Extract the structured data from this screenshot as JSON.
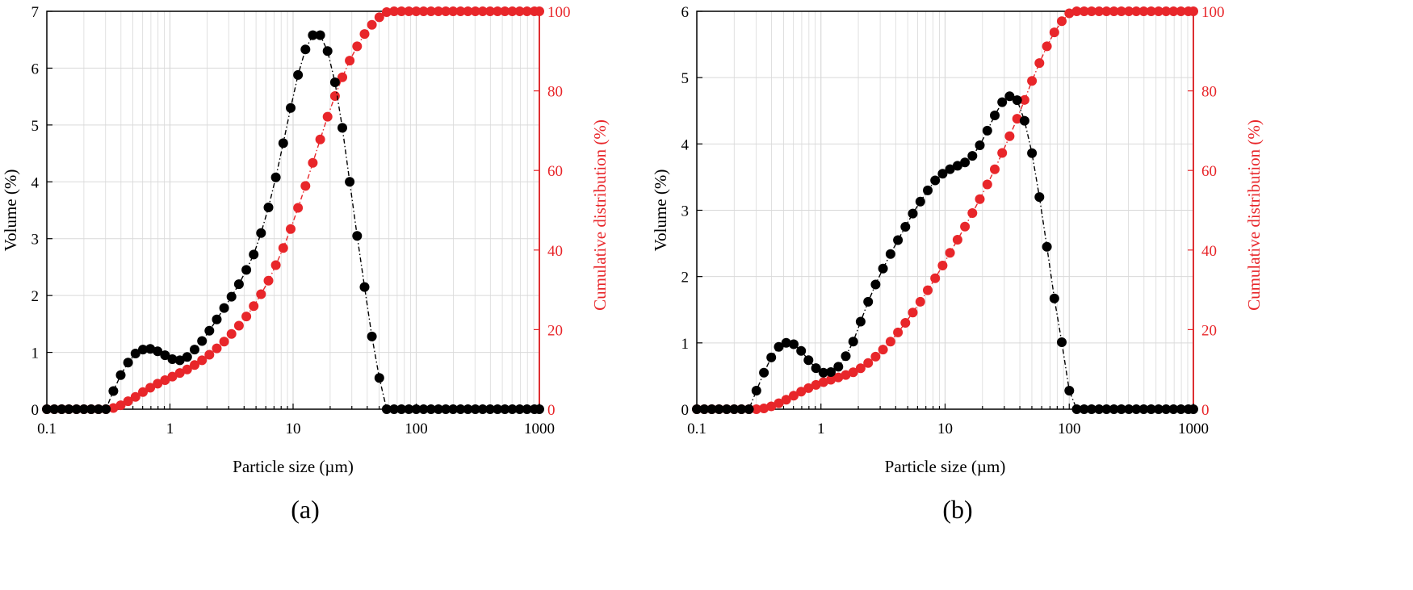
{
  "colors": {
    "volume": "#000000",
    "cumulative": "#e8262a",
    "grid": "#d9d9d9"
  },
  "chart_data": [
    {
      "type": "scatter",
      "panel_label": "(a)",
      "xlabel": "Particle size (µm)",
      "ylabel": "Volume (%)",
      "y2label": "Cumulative distribution (%)",
      "xscale": "log",
      "xlim": [
        0.1,
        1000
      ],
      "ylim": [
        0,
        7
      ],
      "y2lim": [
        0,
        100
      ],
      "xticks": [
        0.1,
        1,
        10,
        100,
        1000
      ],
      "xtick_labels": [
        "0.1",
        "1",
        "10",
        "100",
        "1000"
      ],
      "yticks": [
        0,
        1,
        2,
        3,
        4,
        5,
        6,
        7
      ],
      "ytick_labels": [
        "0",
        "1",
        "2",
        "3",
        "4",
        "5",
        "6",
        "7"
      ],
      "y2ticks": [
        0,
        20,
        40,
        60,
        80,
        100
      ],
      "y2tick_labels": [
        "0",
        "20",
        "40",
        "60",
        "80",
        "100"
      ],
      "grid": true,
      "series": [
        {
          "name": "Volume (%)",
          "axis": "left",
          "color": "#000000",
          "x": [
            0.1,
            0.115,
            0.132,
            0.151,
            0.174,
            0.2,
            0.229,
            0.263,
            0.302,
            0.347,
            0.398,
            0.457,
            0.525,
            0.603,
            0.692,
            0.794,
            0.912,
            1.047,
            1.202,
            1.38,
            1.585,
            1.82,
            2.089,
            2.399,
            2.754,
            3.162,
            3.631,
            4.169,
            4.786,
            5.495,
            6.31,
            7.244,
            8.318,
            9.55,
            10.96,
            12.59,
            14.45,
            16.6,
            19.05,
            21.88,
            25.12,
            28.84,
            33.11,
            38.02,
            43.65,
            50.12,
            57.54,
            66.07,
            75.86,
            87.1,
            100,
            114.8,
            131.8,
            151.4,
            173.8,
            199.5,
            229.1,
            263,
            302,
            346.7,
            398.1,
            457.1,
            524.8,
            602.6,
            691.8,
            794.3,
            912,
            1000
          ],
          "y": [
            0,
            0,
            0,
            0,
            0,
            0,
            0,
            0,
            0,
            0.32,
            0.6,
            0.82,
            0.98,
            1.05,
            1.06,
            1.02,
            0.95,
            0.88,
            0.86,
            0.92,
            1.05,
            1.2,
            1.38,
            1.58,
            1.78,
            1.98,
            2.2,
            2.45,
            2.72,
            3.1,
            3.55,
            4.08,
            4.68,
            5.3,
            5.88,
            6.33,
            6.58,
            6.58,
            6.3,
            5.75,
            4.95,
            4.0,
            3.05,
            2.15,
            1.28,
            0.55,
            0,
            0,
            0,
            0,
            0,
            0,
            0,
            0,
            0,
            0,
            0,
            0,
            0,
            0,
            0,
            0,
            0,
            0,
            0,
            0,
            0,
            0
          ]
        },
        {
          "name": "Cumulative distribution (%)",
          "axis": "right",
          "color": "#e8262a",
          "x": [
            0.1,
            0.115,
            0.132,
            0.151,
            0.174,
            0.2,
            0.229,
            0.263,
            0.302,
            0.347,
            0.398,
            0.457,
            0.525,
            0.603,
            0.692,
            0.794,
            0.912,
            1.047,
            1.202,
            1.38,
            1.585,
            1.82,
            2.089,
            2.399,
            2.754,
            3.162,
            3.631,
            4.169,
            4.786,
            5.495,
            6.31,
            7.244,
            8.318,
            9.55,
            10.96,
            12.59,
            14.45,
            16.6,
            19.05,
            21.88,
            25.12,
            28.84,
            33.11,
            38.02,
            43.65,
            50.12,
            57.54,
            66.07,
            75.86,
            87.1,
            100,
            114.8,
            131.8,
            151.4,
            173.8,
            199.5,
            229.1,
            263,
            302,
            346.7,
            398.1,
            457.1,
            524.8,
            602.6,
            691.8,
            794.3,
            912,
            1000
          ],
          "y": [
            0,
            0,
            0,
            0,
            0,
            0,
            0,
            0,
            0,
            0.3,
            1.0,
            2.0,
            3.1,
            4.3,
            5.4,
            6.4,
            7.3,
            8.2,
            9.1,
            10.0,
            11.1,
            12.3,
            13.7,
            15.3,
            17.0,
            18.9,
            21.0,
            23.3,
            25.9,
            28.9,
            32.3,
            36.2,
            40.5,
            45.3,
            50.6,
            56.1,
            61.9,
            67.8,
            73.5,
            78.7,
            83.4,
            87.6,
            91.2,
            94.3,
            96.6,
            98.5,
            99.8,
            100,
            100,
            100,
            100,
            100,
            100,
            100,
            100,
            100,
            100,
            100,
            100,
            100,
            100,
            100,
            100,
            100,
            100,
            100,
            100,
            100
          ]
        }
      ]
    },
    {
      "type": "scatter",
      "panel_label": "(b)",
      "xlabel": "Particle size (µm)",
      "ylabel": "Volume (%)",
      "y2label": "Cumulative distribution (%)",
      "xscale": "log",
      "xlim": [
        0.1,
        1000
      ],
      "ylim": [
        0,
        6
      ],
      "y2lim": [
        0,
        100
      ],
      "xticks": [
        0.1,
        1,
        10,
        100,
        1000
      ],
      "xtick_labels": [
        "0.1",
        "1",
        "10",
        "100",
        "1000"
      ],
      "yticks": [
        0,
        1,
        2,
        3,
        4,
        5,
        6
      ],
      "ytick_labels": [
        "0",
        "1",
        "2",
        "3",
        "4",
        "5",
        "6"
      ],
      "y2ticks": [
        0,
        20,
        40,
        60,
        80,
        100
      ],
      "y2tick_labels": [
        "0",
        "20",
        "40",
        "60",
        "80",
        "100"
      ],
      "grid": true,
      "series": [
        {
          "name": "Volume (%)",
          "axis": "left",
          "color": "#000000",
          "x": [
            0.1,
            0.115,
            0.132,
            0.151,
            0.174,
            0.2,
            0.229,
            0.263,
            0.302,
            0.347,
            0.398,
            0.457,
            0.525,
            0.603,
            0.692,
            0.794,
            0.912,
            1.047,
            1.202,
            1.38,
            1.585,
            1.82,
            2.089,
            2.399,
            2.754,
            3.162,
            3.631,
            4.169,
            4.786,
            5.495,
            6.31,
            7.244,
            8.318,
            9.55,
            10.96,
            12.59,
            14.45,
            16.6,
            19.05,
            21.88,
            25.12,
            28.84,
            33.11,
            38.02,
            43.65,
            50.12,
            57.54,
            66.07,
            75.86,
            87.1,
            100,
            114.8,
            131.8,
            151.4,
            173.8,
            199.5,
            229.1,
            263,
            302,
            346.7,
            398.1,
            457.1,
            524.8,
            602.6,
            691.8,
            794.3,
            912,
            1000
          ],
          "y": [
            0,
            0,
            0,
            0,
            0,
            0,
            0,
            0,
            0.28,
            0.55,
            0.78,
            0.94,
            1.0,
            0.98,
            0.88,
            0.74,
            0.62,
            0.55,
            0.56,
            0.64,
            0.8,
            1.02,
            1.32,
            1.62,
            1.88,
            2.12,
            2.34,
            2.55,
            2.75,
            2.95,
            3.13,
            3.3,
            3.45,
            3.55,
            3.62,
            3.67,
            3.72,
            3.82,
            3.98,
            4.2,
            4.43,
            4.63,
            4.72,
            4.66,
            4.35,
            3.86,
            3.2,
            2.45,
            1.67,
            1.01,
            0.28,
            0,
            0,
            0,
            0,
            0,
            0,
            0,
            0,
            0,
            0,
            0,
            0,
            0,
            0,
            0,
            0,
            0
          ]
        },
        {
          "name": "Cumulative distribution (%)",
          "axis": "right",
          "color": "#e8262a",
          "x": [
            0.1,
            0.115,
            0.132,
            0.151,
            0.174,
            0.2,
            0.229,
            0.263,
            0.302,
            0.347,
            0.398,
            0.457,
            0.525,
            0.603,
            0.692,
            0.794,
            0.912,
            1.047,
            1.202,
            1.38,
            1.585,
            1.82,
            2.089,
            2.399,
            2.754,
            3.162,
            3.631,
            4.169,
            4.786,
            5.495,
            6.31,
            7.244,
            8.318,
            9.55,
            10.96,
            12.59,
            14.45,
            16.6,
            19.05,
            21.88,
            25.12,
            28.84,
            33.11,
            38.02,
            43.65,
            50.12,
            57.54,
            66.07,
            75.86,
            87.1,
            100,
            114.8,
            131.8,
            151.4,
            173.8,
            199.5,
            229.1,
            263,
            302,
            346.7,
            398.1,
            457.1,
            524.8,
            602.6,
            691.8,
            794.3,
            912,
            1000
          ],
          "y": [
            0,
            0,
            0,
            0,
            0,
            0,
            0,
            0,
            0,
            0.2,
            0.7,
            1.5,
            2.4,
            3.4,
            4.4,
            5.3,
            6.1,
            6.8,
            7.4,
            8.0,
            8.6,
            9.3,
            10.3,
            11.6,
            13.2,
            15.0,
            17.0,
            19.3,
            21.7,
            24.3,
            27.0,
            29.9,
            32.9,
            36.1,
            39.3,
            42.6,
            45.9,
            49.3,
            52.8,
            56.5,
            60.3,
            64.4,
            68.6,
            73.0,
            77.7,
            82.5,
            87.0,
            91.2,
            94.7,
            97.5,
            99.5,
            100,
            100,
            100,
            100,
            100,
            100,
            100,
            100,
            100,
            100,
            100,
            100,
            100,
            100,
            100,
            100,
            100
          ]
        }
      ]
    }
  ]
}
